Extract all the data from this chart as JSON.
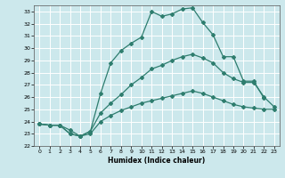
{
  "title": "",
  "xlabel": "Humidex (Indice chaleur)",
  "ylabel": "",
  "bg_color": "#cce8ec",
  "grid_color": "#ffffff",
  "line_color": "#2e7d6e",
  "xlim": [
    -0.5,
    23.5
  ],
  "ylim": [
    22,
    33.5
  ],
  "xticks": [
    0,
    1,
    2,
    3,
    4,
    5,
    6,
    7,
    8,
    9,
    10,
    11,
    12,
    13,
    14,
    15,
    16,
    17,
    18,
    19,
    20,
    21,
    22,
    23
  ],
  "yticks": [
    22,
    23,
    24,
    25,
    26,
    27,
    28,
    29,
    30,
    31,
    32,
    33
  ],
  "series": [
    {
      "x": [
        0,
        1,
        2,
        3,
        4,
        5,
        6,
        7,
        8,
        9,
        10,
        11,
        12,
        13,
        14,
        15,
        16,
        17,
        18,
        19,
        20,
        21,
        22
      ],
      "y": [
        23.8,
        23.7,
        23.7,
        23.3,
        22.8,
        23.2,
        26.3,
        28.8,
        29.8,
        30.4,
        30.9,
        33.0,
        32.6,
        32.8,
        33.2,
        33.3,
        32.1,
        31.1,
        29.3,
        29.3,
        27.3,
        27.3,
        25.9
      ]
    },
    {
      "x": [
        0,
        1,
        2,
        3,
        4,
        5,
        6,
        7,
        8,
        9,
        10,
        11,
        12,
        13,
        14,
        15,
        16,
        17,
        18,
        19,
        20,
        21,
        22,
        23
      ],
      "y": [
        23.8,
        23.7,
        23.7,
        23.0,
        22.8,
        23.2,
        24.7,
        25.5,
        26.2,
        27.0,
        27.6,
        28.3,
        28.6,
        29.0,
        29.3,
        29.5,
        29.2,
        28.8,
        28.0,
        27.5,
        27.2,
        27.2,
        26.0,
        25.2
      ]
    },
    {
      "x": [
        0,
        1,
        2,
        3,
        4,
        5,
        6,
        7,
        8,
        9,
        10,
        11,
        12,
        13,
        14,
        15,
        16,
        17,
        18,
        19,
        20,
        21,
        22,
        23
      ],
      "y": [
        23.8,
        23.7,
        23.7,
        23.0,
        22.8,
        23.0,
        24.0,
        24.5,
        24.9,
        25.2,
        25.5,
        25.7,
        25.9,
        26.1,
        26.3,
        26.5,
        26.3,
        26.0,
        25.7,
        25.4,
        25.2,
        25.1,
        25.0,
        25.0
      ]
    }
  ]
}
